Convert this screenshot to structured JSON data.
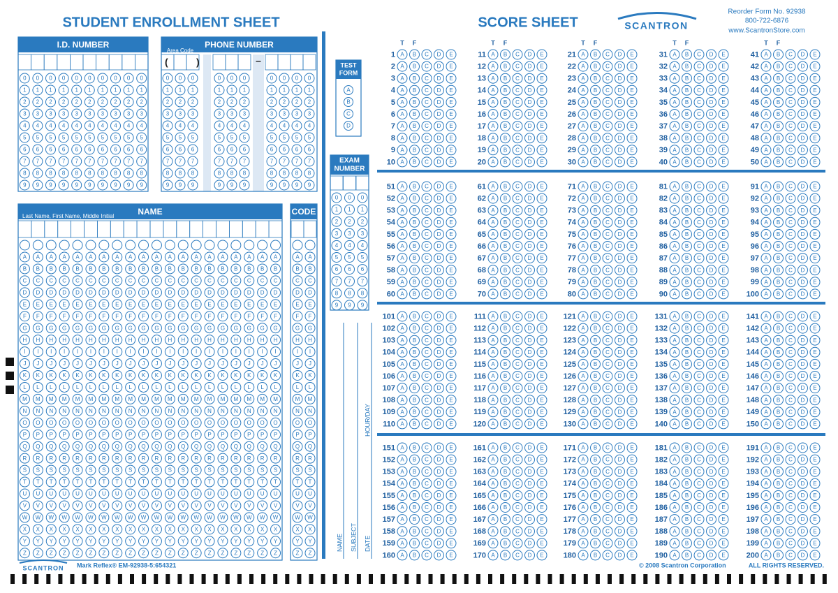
{
  "header": {
    "enrollment_title": "STUDENT ENROLLMENT SHEET",
    "score_title": "SCORE SHEET",
    "brand": "SCANTRON",
    "reorder": [
      "Reorder Form No. 92938",
      "800-722-6876",
      "www.ScantronStore.com"
    ]
  },
  "enrollment": {
    "id_number": {
      "title": "I.D. NUMBER"
    },
    "phone_number": {
      "title": "PHONE NUMBER",
      "area_code": "Area Code",
      "symbols": [
        "(",
        ")",
        "–"
      ]
    },
    "digits": [
      "0",
      "1",
      "2",
      "3",
      "4",
      "5",
      "6",
      "7",
      "8",
      "9"
    ],
    "name": {
      "title": "NAME",
      "subtitle": "Last Name, First Name, Middle Initial",
      "letters": [
        "A",
        "B",
        "C",
        "D",
        "E",
        "F",
        "G",
        "H",
        "I",
        "J",
        "K",
        "L",
        "M",
        "N",
        "O",
        "P",
        "Q",
        "R",
        "S",
        "T",
        "U",
        "V",
        "W",
        "X",
        "Y",
        "Z"
      ]
    },
    "code": {
      "title": "CODE"
    },
    "test_form": {
      "title": [
        "TEST",
        "FORM"
      ],
      "options": [
        "A",
        "B",
        "C",
        "D"
      ]
    },
    "exam_number": {
      "title": [
        "EXAM",
        "NUMBER"
      ]
    },
    "fields": [
      "NAME",
      "SUBJECT",
      "DATE",
      "HOUR/DAY"
    ]
  },
  "score_sheet": {
    "tf": [
      "T",
      "F"
    ],
    "options": [
      "A",
      "B",
      "C",
      "D",
      "E"
    ],
    "questions": [
      1,
      2,
      3,
      4,
      5,
      6,
      7,
      8,
      9,
      10,
      11,
      12,
      13,
      14,
      15,
      16,
      17,
      18,
      19,
      20,
      21,
      22,
      23,
      24,
      25,
      26,
      27,
      28,
      29,
      30,
      31,
      32,
      33,
      34,
      35,
      36,
      37,
      38,
      39,
      40,
      41,
      42,
      43,
      44,
      45,
      46,
      47,
      48,
      49,
      50,
      51,
      52,
      53,
      54,
      55,
      56,
      57,
      58,
      59,
      60,
      61,
      62,
      63,
      64,
      65,
      66,
      67,
      68,
      69,
      70,
      71,
      72,
      73,
      74,
      75,
      76,
      77,
      78,
      79,
      80,
      81,
      82,
      83,
      84,
      85,
      86,
      87,
      88,
      89,
      90,
      91,
      92,
      93,
      94,
      95,
      96,
      97,
      98,
      99,
      100,
      101,
      102,
      103,
      104,
      105,
      106,
      107,
      108,
      109,
      110,
      111,
      112,
      113,
      114,
      115,
      116,
      117,
      118,
      119,
      120,
      121,
      122,
      123,
      124,
      125,
      126,
      127,
      128,
      129,
      130,
      131,
      132,
      133,
      134,
      135,
      136,
      137,
      138,
      139,
      140,
      141,
      142,
      143,
      144,
      145,
      146,
      147,
      148,
      149,
      150,
      151,
      152,
      153,
      154,
      155,
      156,
      157,
      158,
      159,
      160,
      161,
      162,
      163,
      164,
      165,
      166,
      167,
      168,
      169,
      170,
      171,
      172,
      173,
      174,
      175,
      176,
      177,
      178,
      179,
      180,
      181,
      182,
      183,
      184,
      185,
      186,
      187,
      188,
      189,
      190,
      191,
      192,
      193,
      194,
      195,
      196,
      197,
      198,
      199,
      200
    ]
  },
  "footer": {
    "brand": "SCANTRON",
    "form_code": "Mark Reflex® EM-92938-5:654321",
    "copyright": "© 2008 Scantron Corporation",
    "rights": "ALL RIGHTS RESERVED."
  }
}
